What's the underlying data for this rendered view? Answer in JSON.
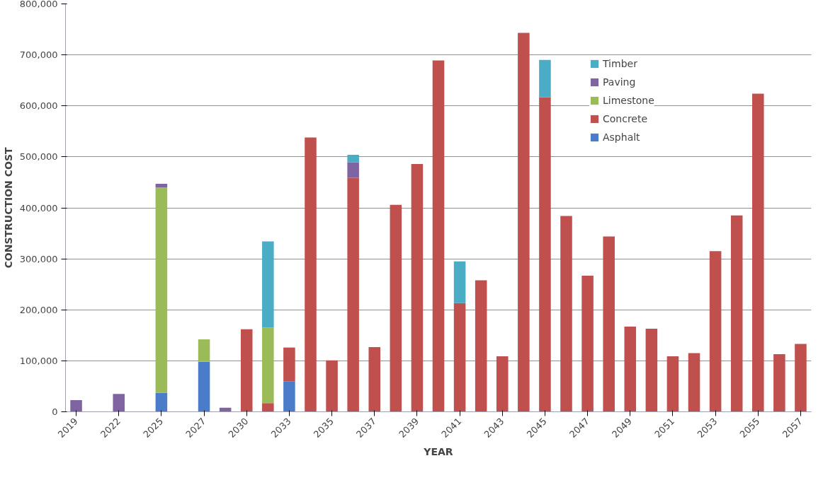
{
  "chart_data": {
    "type": "bar",
    "stacked": true,
    "xlabel": "YEAR",
    "ylabel": "CONSTRUCTION COST",
    "categories": [
      "2019",
      null,
      "2022",
      null,
      "2025",
      null,
      "2027",
      null,
      "2030",
      null,
      "2033",
      null,
      "2035",
      null,
      "2037",
      null,
      "2039",
      null,
      "2041",
      null,
      "2043",
      null,
      "2045",
      null,
      "2047",
      null,
      "2049",
      null,
      "2051",
      null,
      "2053",
      null,
      "2055",
      null,
      "2057"
    ],
    "series": [
      {
        "name": "Asphalt",
        "color": "#4a7cc9",
        "values": [
          null,
          null,
          null,
          null,
          37000,
          null,
          98000,
          null,
          null,
          null,
          60000,
          null,
          null,
          null,
          null,
          null,
          null,
          null,
          null,
          null,
          null,
          null,
          null,
          null,
          null,
          null,
          null,
          null,
          null,
          null,
          null,
          null,
          null,
          null,
          null
        ]
      },
      {
        "name": "Concrete",
        "color": "#c0504d",
        "values": [
          null,
          null,
          null,
          null,
          null,
          null,
          null,
          null,
          162000,
          17000,
          66000,
          538000,
          101000,
          459000,
          127000,
          406000,
          486000,
          689000,
          213000,
          258000,
          109000,
          743000,
          617000,
          384000,
          267000,
          344000,
          167000,
          163000,
          109000,
          115000,
          315000,
          385000,
          624000,
          113000,
          133000
        ]
      },
      {
        "name": "Limestone",
        "color": "#9bbb59",
        "values": [
          null,
          null,
          null,
          null,
          403000,
          null,
          44000,
          null,
          null,
          148000,
          null,
          null,
          null,
          null,
          null,
          null,
          null,
          null,
          null,
          null,
          null,
          null,
          null,
          null,
          null,
          null,
          null,
          null,
          null,
          null,
          null,
          null,
          null,
          null,
          null
        ]
      },
      {
        "name": "Paving",
        "color": "#8064a2",
        "values": [
          23000,
          null,
          35000,
          null,
          7000,
          null,
          null,
          8000,
          null,
          null,
          null,
          null,
          null,
          30000,
          null,
          null,
          null,
          null,
          null,
          null,
          null,
          null,
          null,
          null,
          null,
          null,
          null,
          null,
          null,
          null,
          null,
          null,
          null,
          null,
          null
        ]
      },
      {
        "name": "Timber",
        "color": "#4bacc6",
        "values": [
          null,
          null,
          null,
          null,
          null,
          null,
          null,
          null,
          null,
          169000,
          null,
          null,
          null,
          15000,
          null,
          null,
          null,
          null,
          82000,
          null,
          null,
          null,
          73000,
          null,
          null,
          null,
          null,
          null,
          null,
          null,
          null,
          null,
          null,
          null,
          null
        ]
      }
    ],
    "ylim": [
      0,
      800000
    ],
    "yticks": [
      0,
      {
        "value": 100000,
        "label": "100,000"
      },
      {
        "value": 200000,
        "label": "200,000"
      },
      {
        "value": 300000,
        "label": "300,000"
      },
      {
        "value": 400000,
        "label": "400,000"
      },
      {
        "value": 500000,
        "label": "500,000"
      },
      {
        "value": 600000,
        "label": "600,000"
      },
      {
        "value": 700000,
        "label": "700,000"
      },
      {
        "value": 800000,
        "label": "800,000"
      }
    ],
    "grid": "y",
    "legend": "top right"
  }
}
